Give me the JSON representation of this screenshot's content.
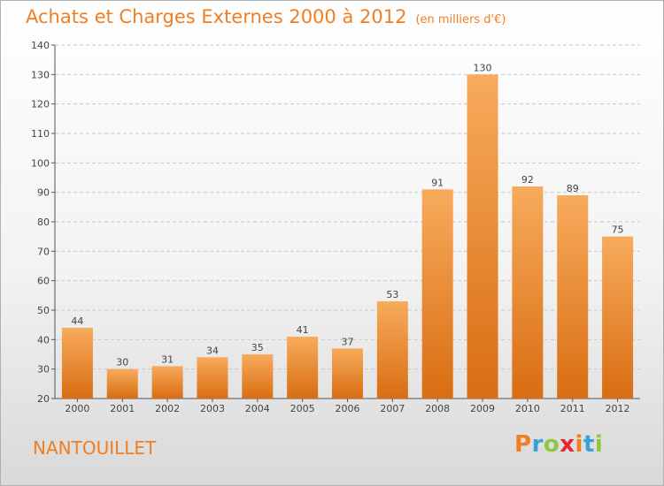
{
  "title": "Achats et Charges Externes 2000 à 2012",
  "subtitle": "(en milliers d'€)",
  "place": "NANTOUILLET",
  "logo": [
    "P",
    "r",
    "o",
    "x",
    "i",
    "t",
    "i"
  ],
  "colors": {
    "accent": "#f07e22",
    "bar_top": "#f7ab5c",
    "bar_bottom": "#d96d12",
    "grid": "#c8c8c8",
    "axis": "#555555"
  },
  "chart_data": {
    "type": "bar",
    "title": "Achats et Charges Externes 2000 à 2012",
    "subtitle": "(en milliers d'€)",
    "categories": [
      "2000",
      "2001",
      "2002",
      "2003",
      "2004",
      "2005",
      "2006",
      "2007",
      "2008",
      "2009",
      "2010",
      "2011",
      "2012"
    ],
    "values": [
      44,
      30,
      31,
      34,
      35,
      41,
      37,
      53,
      91,
      130,
      92,
      89,
      75
    ],
    "ylim": [
      20,
      140
    ],
    "yticks": [
      20,
      30,
      40,
      50,
      60,
      70,
      80,
      90,
      100,
      110,
      120,
      130,
      140
    ],
    "grid": true,
    "data_labels": true
  }
}
